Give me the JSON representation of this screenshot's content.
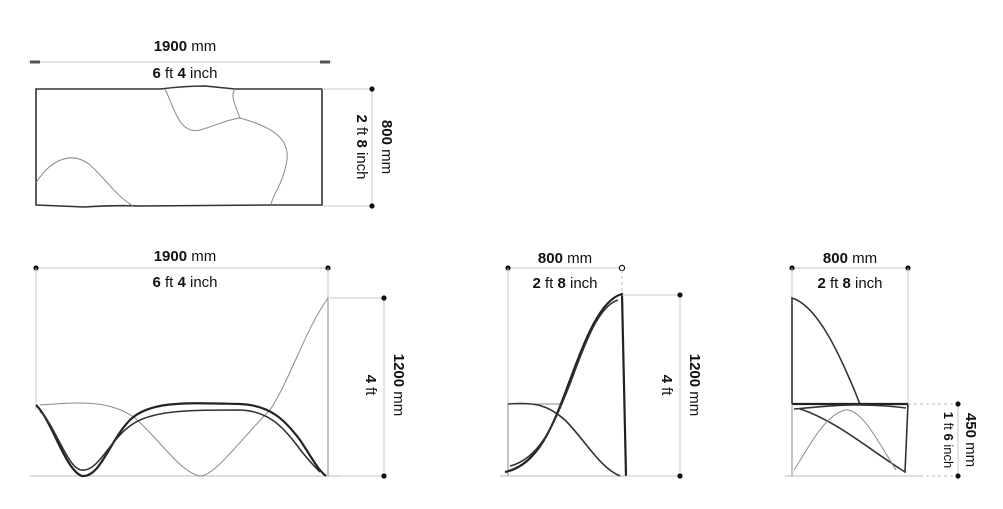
{
  "dimensions": {
    "top_view": {
      "width_mm": "1900",
      "mm_unit": "mm",
      "width_ft": "6",
      "width_in": "4",
      "ft_unit": "ft",
      "in_unit": "inch",
      "depth_mm": "800",
      "depth_ft": "2",
      "depth_in": "8"
    },
    "front_view": {
      "width_mm": "1900",
      "width_ft": "6",
      "width_in": "4",
      "height_mm": "1200",
      "height_ft": "4"
    },
    "side_view_left": {
      "width_mm": "800",
      "width_ft": "2",
      "width_in": "8",
      "height_mm": "1200",
      "height_ft": "4"
    },
    "side_view_right": {
      "width_mm": "800",
      "width_ft": "2",
      "width_in": "8",
      "seat_mm": "450",
      "seat_ft": "1",
      "seat_in": "6"
    }
  },
  "units": {
    "mm": "mm",
    "ft": "ft",
    "inch": "inch"
  }
}
